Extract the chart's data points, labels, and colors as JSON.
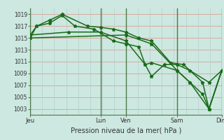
{
  "title": "Pression niveau de la mer( hPa )",
  "bg_color": "#cce8e0",
  "grid_color_h": "#daaaa0",
  "grid_color_v": "#b8ccc8",
  "line_color": "#1a6b1a",
  "day_line_color": "#4a7a4a",
  "ylim": [
    1002,
    1020
  ],
  "yticks": [
    1003,
    1005,
    1007,
    1009,
    1011,
    1013,
    1015,
    1017,
    1019
  ],
  "xtick_labels": [
    "Jeu",
    "Lun",
    "Ven",
    "Sam",
    "Dim"
  ],
  "xtick_positions": [
    0,
    5.5,
    7.5,
    11.5,
    15
  ],
  "x_max": 15,
  "series1_x": [
    0,
    0.5,
    1.5,
    2.5,
    3.5,
    5.0,
    6.5,
    7.5,
    8.5,
    9.0,
    9.5,
    10.5,
    11.5,
    12.5,
    14.0,
    15.0
  ],
  "series1_y": [
    1015,
    1017,
    1017.5,
    1018.8,
    1017,
    1016.5,
    1014.5,
    1014,
    1013.5,
    1010.5,
    1008.5,
    1010.5,
    1010.5,
    1009.5,
    1007.5,
    1009.5
  ],
  "series2_x": [
    0,
    0.5,
    1.5,
    2.5,
    4.5,
    5.5,
    6.5,
    7.5,
    8.5,
    9.5,
    11.0,
    12.0,
    13.5,
    14.0,
    15.0
  ],
  "series2_y": [
    1015.5,
    1017,
    1018,
    1019,
    1017,
    1016.8,
    1016.5,
    1016,
    1015,
    1014.5,
    1010.8,
    1010.5,
    1007.5,
    1003,
    1009.5
  ],
  "series3_x": [
    0,
    3,
    5.5,
    7.5,
    9.0,
    9.5,
    11.5,
    12.5,
    14.0,
    15.0
  ],
  "series3_y": [
    1015.5,
    1016,
    1016,
    1014.5,
    1010.5,
    1010.8,
    1009.5,
    1007.5,
    1003,
    1009.5
  ],
  "series4_x": [
    0,
    7.5,
    9.5,
    11.5,
    12.5,
    13.5,
    14.0,
    15.0
  ],
  "series4_y": [
    1015,
    1015.5,
    1014,
    1009.5,
    1007.5,
    1005.5,
    1003,
    1009.5
  ]
}
